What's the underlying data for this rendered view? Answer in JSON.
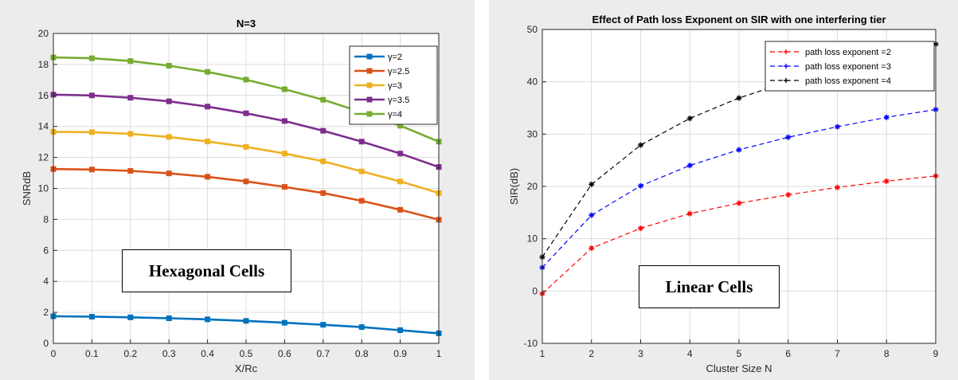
{
  "colors": {
    "panel_bg": "#ececec",
    "plot_bg": "#ffffff",
    "grid": "#dcdcdc"
  },
  "chart_data": [
    {
      "type": "line",
      "title": "N=3",
      "xlabel": "X/Rc",
      "ylabel": "SNRdB",
      "xlim": [
        0,
        1
      ],
      "ylim": [
        0,
        20
      ],
      "xticks": [
        0,
        0.1,
        0.2,
        0.3,
        0.4,
        0.5,
        0.6,
        0.7,
        0.8,
        0.9,
        1
      ],
      "yticks": [
        0,
        2,
        4,
        6,
        8,
        10,
        12,
        14,
        16,
        18,
        20
      ],
      "grid": true,
      "legend_position": "top-right",
      "annotation": "Hexagonal Cells",
      "x": [
        0,
        0.1,
        0.2,
        0.3,
        0.4,
        0.5,
        0.6,
        0.7,
        0.8,
        0.9,
        1
      ],
      "series": [
        {
          "name": "γ=2",
          "color": "#0072bd",
          "values": [
            1.75,
            1.72,
            1.68,
            1.62,
            1.55,
            1.45,
            1.33,
            1.2,
            1.05,
            0.85,
            0.65
          ]
        },
        {
          "name": "γ=2.5",
          "color": "#d95319",
          "values": [
            11.25,
            11.22,
            11.13,
            10.97,
            10.75,
            10.45,
            10.1,
            9.7,
            9.2,
            8.62,
            7.98
          ]
        },
        {
          "name": "γ=3",
          "color": "#edb120",
          "values": [
            13.65,
            13.63,
            13.52,
            13.32,
            13.03,
            12.68,
            12.25,
            11.75,
            11.1,
            10.45,
            9.7
          ]
        },
        {
          "name": "γ=3.5",
          "color": "#7e2f8e",
          "values": [
            16.05,
            16.0,
            15.85,
            15.62,
            15.28,
            14.85,
            14.35,
            13.72,
            13.02,
            12.25,
            11.38
          ]
        },
        {
          "name": "γ=4",
          "color": "#77ac30",
          "values": [
            18.45,
            18.4,
            18.22,
            17.92,
            17.52,
            17.02,
            16.4,
            15.72,
            14.92,
            14.05,
            13.02
          ]
        }
      ]
    },
    {
      "type": "line",
      "title": "Effect of Path loss Exponent on SIR with one interfering tier",
      "xlabel": "Cluster Size N",
      "ylabel": "SIR(dB)",
      "xlim": [
        1,
        9
      ],
      "ylim": [
        -10,
        50
      ],
      "xticks": [
        1,
        2,
        3,
        4,
        5,
        6,
        7,
        8,
        9
      ],
      "yticks": [
        -10,
        0,
        10,
        20,
        30,
        40,
        50
      ],
      "grid": true,
      "legend_position": "top-right",
      "annotation": "Linear Cells",
      "x": [
        1,
        2,
        3,
        4,
        5,
        6,
        7,
        8,
        9
      ],
      "series": [
        {
          "name": "path loss exponent =2",
          "color": "#ff0000",
          "values": [
            -0.5,
            8.2,
            12.0,
            14.8,
            16.8,
            18.4,
            19.8,
            21.0,
            22.0
          ]
        },
        {
          "name": "path loss exponent =3",
          "color": "#0000ff",
          "values": [
            4.5,
            14.5,
            20.1,
            24.0,
            27.0,
            29.4,
            31.4,
            33.2,
            34.7
          ]
        },
        {
          "name": "path loss exponent =4",
          "color": "#000000",
          "values": [
            6.5,
            20.4,
            27.9,
            33.0,
            36.9,
            40.0,
            42.8,
            45.2,
            47.2
          ]
        }
      ]
    }
  ]
}
